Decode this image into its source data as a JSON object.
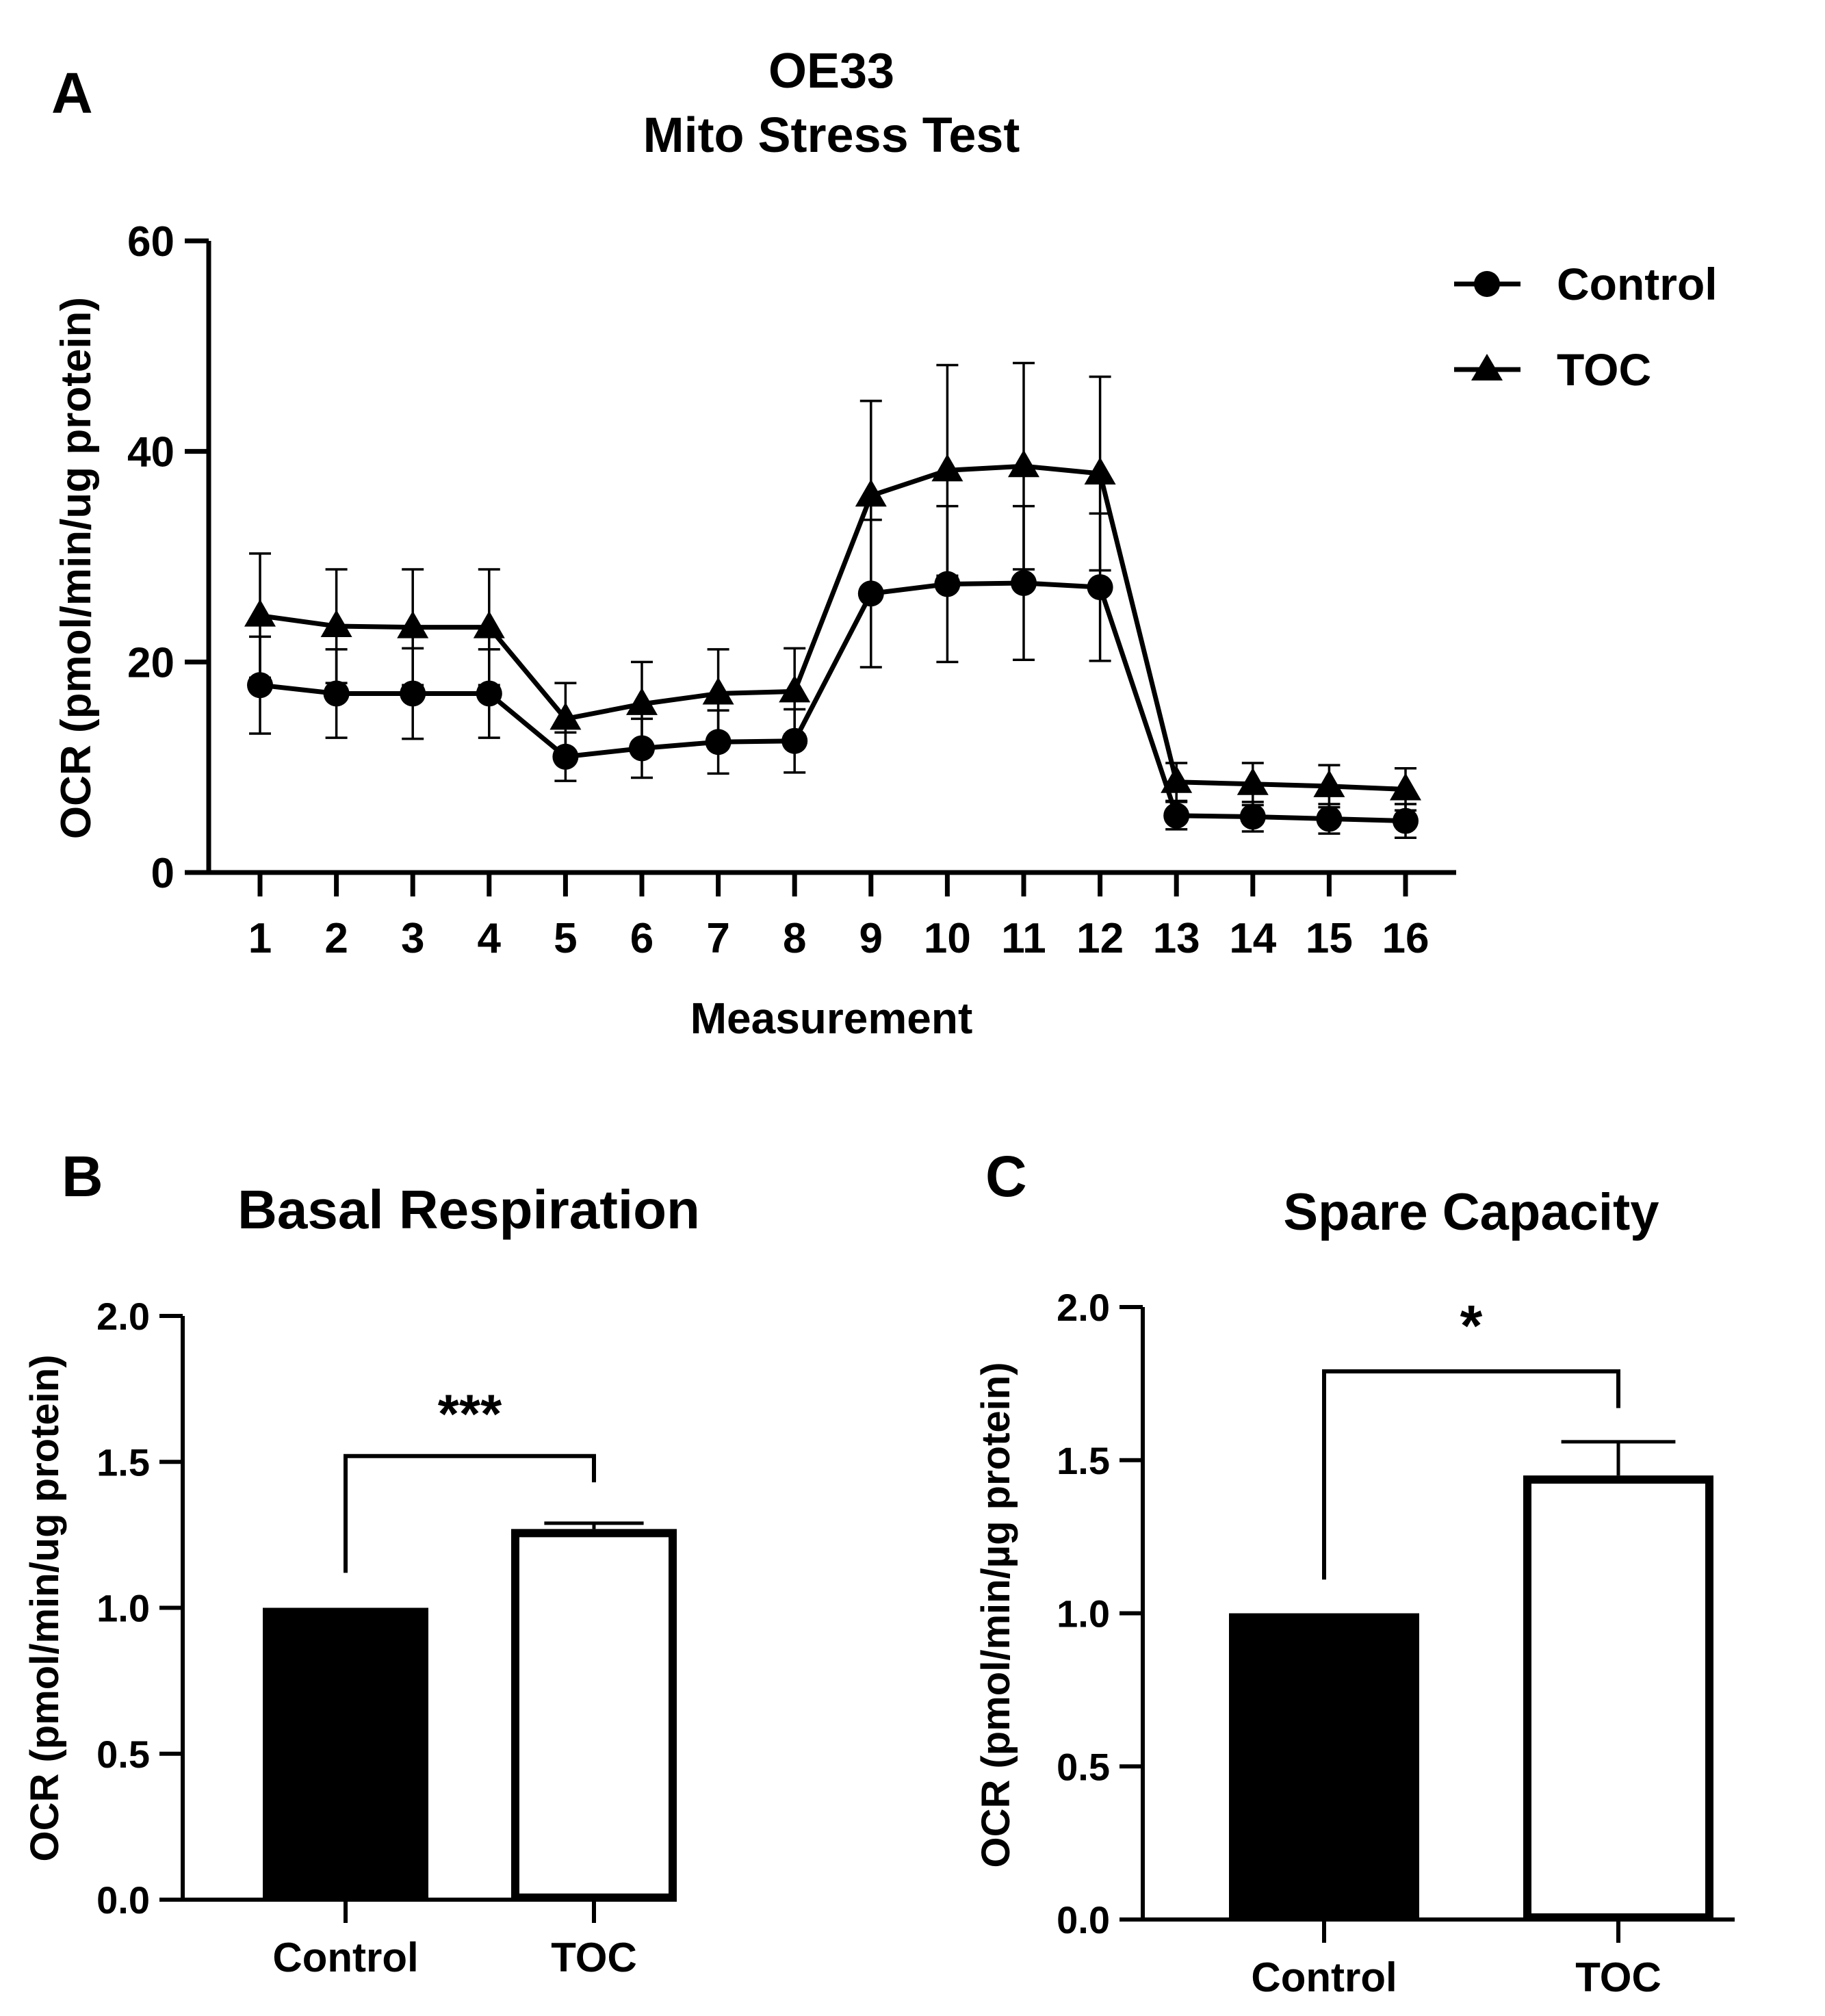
{
  "chart_data": [
    {
      "panel": "A",
      "type": "line",
      "title": "OE33",
      "subtitle": "Mito Stress  Test",
      "xlabel": "Measurement",
      "ylabel": "OCR (pmol/min/ug protein)",
      "ylim": [
        0,
        60
      ],
      "yticks": [
        "0",
        "20",
        "40",
        "60"
      ],
      "categories": [
        "1",
        "2",
        "3",
        "4",
        "5",
        "6",
        "7",
        "8",
        "9",
        "10",
        "11",
        "12",
        "13",
        "14",
        "15",
        "16"
      ],
      "grid": false,
      "legend_position": "top-right",
      "series": [
        {
          "name": "Control",
          "marker": "circle",
          "values": [
            17.8,
            17.0,
            17.0,
            17.0,
            11.0,
            11.8,
            12.4,
            12.5,
            26.5,
            27.4,
            27.5,
            27.1,
            5.4,
            5.3,
            5.1,
            4.9
          ],
          "errors": [
            4.6,
            4.2,
            4.3,
            4.2,
            2.3,
            2.8,
            3.0,
            3.0,
            7.0,
            7.4,
            7.3,
            7.0,
            1.3,
            1.4,
            1.4,
            1.6
          ]
        },
        {
          "name": "TOC",
          "marker": "triangle",
          "values": [
            24.4,
            23.4,
            23.3,
            23.3,
            14.6,
            16.0,
            17.0,
            17.2,
            35.8,
            38.2,
            38.6,
            37.9,
            8.6,
            8.4,
            8.2,
            7.9
          ],
          "errors": [
            5.9,
            5.4,
            5.5,
            5.5,
            3.4,
            4.0,
            4.2,
            4.1,
            9.0,
            10.0,
            9.8,
            9.2,
            1.8,
            2.0,
            2.0,
            2.0
          ]
        }
      ]
    },
    {
      "panel": "B",
      "type": "bar",
      "title": "Basal Respiration",
      "ylabel": "OCR (pmol/min/ug protein)",
      "ylim": [
        0,
        2.0
      ],
      "yticks": [
        "0.0",
        "0.5",
        "1.0",
        "1.5",
        "2.0"
      ],
      "categories": [
        "Control",
        "TOC"
      ],
      "values": [
        1.0,
        1.27
      ],
      "errors": [
        0,
        0.02
      ],
      "fills": [
        "#000000",
        "#ffffff"
      ],
      "significance": "***"
    },
    {
      "panel": "C",
      "type": "bar",
      "title": "Spare Capacity",
      "ylabel": "OCR (pmol/min/µg protein)",
      "ylim": [
        0,
        2.0
      ],
      "yticks": [
        "0.0",
        "0.5",
        "1.0",
        "1.5",
        "2.0"
      ],
      "categories": [
        "Control",
        "TOC"
      ],
      "values": [
        1.0,
        1.45
      ],
      "errors": [
        0,
        0.11
      ],
      "fills": [
        "#000000",
        "#ffffff"
      ],
      "significance": "*"
    }
  ]
}
